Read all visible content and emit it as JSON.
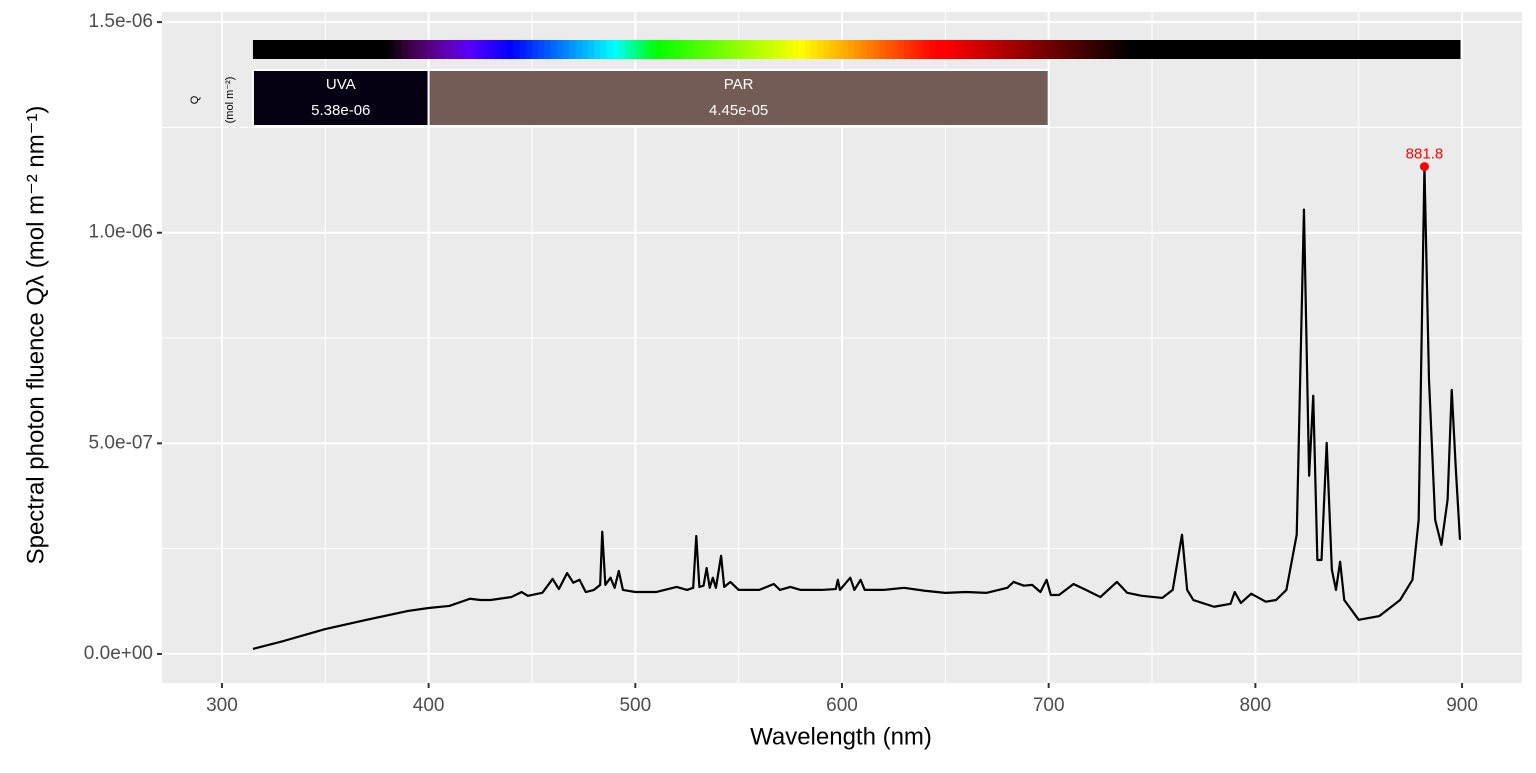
{
  "chart_data": {
    "type": "line",
    "x_label": "Wavelength (nm)",
    "y_label": "Spectral  photon  fluence  Qλ  (mol m⁻² nm⁻¹)",
    "xlim": [
      271,
      929
    ],
    "ylim": [
      -6.9e-08,
      1.524e-06
    ],
    "xticks": [
      300,
      400,
      500,
      600,
      700,
      800,
      900
    ],
    "yticks": [
      {
        "value": 0,
        "label": "0.0e+00"
      },
      {
        "value": 5e-07,
        "label": "5.0e-07"
      },
      {
        "value": 1e-06,
        "label": "1.0e-06"
      },
      {
        "value": 1.5e-06,
        "label": "1.5e-06"
      }
    ],
    "grid": true,
    "series": [
      {
        "color": "#000000",
        "x": [
          315,
          330,
          350,
          370,
          390,
          400,
          410,
          420,
          425,
          430,
          440,
          445,
          448,
          455,
          460,
          463,
          467,
          470,
          473,
          476,
          480,
          483,
          484,
          485.5,
          488,
          490,
          492,
          494,
          500,
          510,
          520,
          525,
          528,
          529.5,
          531,
          533,
          534.5,
          536,
          537.5,
          539,
          541.5,
          543,
          546,
          550,
          560,
          567,
          570,
          575,
          580,
          590,
          597,
          598,
          599,
          604,
          606,
          609,
          611,
          620,
          630,
          640,
          650,
          660,
          670,
          680,
          683,
          688,
          692,
          696,
          699,
          701,
          705,
          712,
          718,
          725,
          733,
          738,
          745,
          755,
          760,
          764.5,
          767,
          770,
          780,
          788,
          790,
          793,
          798,
          805,
          810,
          815,
          820,
          823.5,
          826,
          828,
          830,
          832,
          834.5,
          837,
          839,
          841,
          843,
          850,
          860,
          870,
          876,
          879,
          881.8,
          884,
          887,
          890,
          893,
          895,
          897,
          899
        ],
        "values": [
          1.2e-08,
          3.1e-08,
          5.9e-08,
          8.1e-08,
          1.02e-07,
          1.09e-07,
          1.14e-07,
          1.31e-07,
          1.28e-07,
          1.28e-07,
          1.35e-07,
          1.47e-07,
          1.38e-07,
          1.45e-07,
          1.78e-07,
          1.54e-07,
          1.92e-07,
          1.69e-07,
          1.76e-07,
          1.47e-07,
          1.52e-07,
          1.64e-07,
          2.9e-07,
          1.64e-07,
          1.81e-07,
          1.57e-07,
          1.97e-07,
          1.52e-07,
          1.47e-07,
          1.47e-07,
          1.59e-07,
          1.52e-07,
          1.57e-07,
          2.8e-07,
          1.59e-07,
          1.62e-07,
          2.04e-07,
          1.57e-07,
          1.81e-07,
          1.57e-07,
          2.33e-07,
          1.59e-07,
          1.71e-07,
          1.52e-07,
          1.52e-07,
          1.66e-07,
          1.52e-07,
          1.59e-07,
          1.52e-07,
          1.52e-07,
          1.54e-07,
          1.76e-07,
          1.52e-07,
          1.81e-07,
          1.52e-07,
          1.76e-07,
          1.52e-07,
          1.52e-07,
          1.57e-07,
          1.5e-07,
          1.45e-07,
          1.47e-07,
          1.45e-07,
          1.57e-07,
          1.71e-07,
          1.62e-07,
          1.64e-07,
          1.47e-07,
          1.76e-07,
          1.4e-07,
          1.4e-07,
          1.66e-07,
          1.52e-07,
          1.35e-07,
          1.71e-07,
          1.45e-07,
          1.38e-07,
          1.33e-07,
          1.52e-07,
          2.83e-07,
          1.52e-07,
          1.28e-07,
          1.12e-07,
          1.19e-07,
          1.47e-07,
          1.21e-07,
          1.43e-07,
          1.24e-07,
          1.28e-07,
          1.52e-07,
          2.83e-07,
          1.055e-06,
          4.23e-07,
          6.13e-07,
          2.23e-07,
          2.23e-07,
          5.01e-07,
          2e-07,
          1.52e-07,
          2.19e-07,
          1.28e-07,
          8.1e-08,
          9e-08,
          1.28e-07,
          1.76e-07,
          3.18e-07,
          1.157e-06,
          6.51e-07,
          3.18e-07,
          2.59e-07,
          3.66e-07,
          6.27e-07,
          4.37e-07,
          2.71e-07
        ]
      }
    ],
    "peak": {
      "x": 881.8,
      "y": 1.157e-06,
      "color": "#ff0000"
    },
    "band_label_title": "Q",
    "band_label_units": "(mol m⁻²)",
    "bands": {
      "names": [
        "UVA",
        "PAR"
      ],
      "starts": [
        315,
        400
      ],
      "ends": [
        400,
        700
      ],
      "values": [
        5.38e-06,
        4.45e-05
      ],
      "value_labels": [
        "5.38e-06",
        "4.45e-05"
      ],
      "colors": [
        "#050012",
        "#735c55"
      ]
    }
  }
}
